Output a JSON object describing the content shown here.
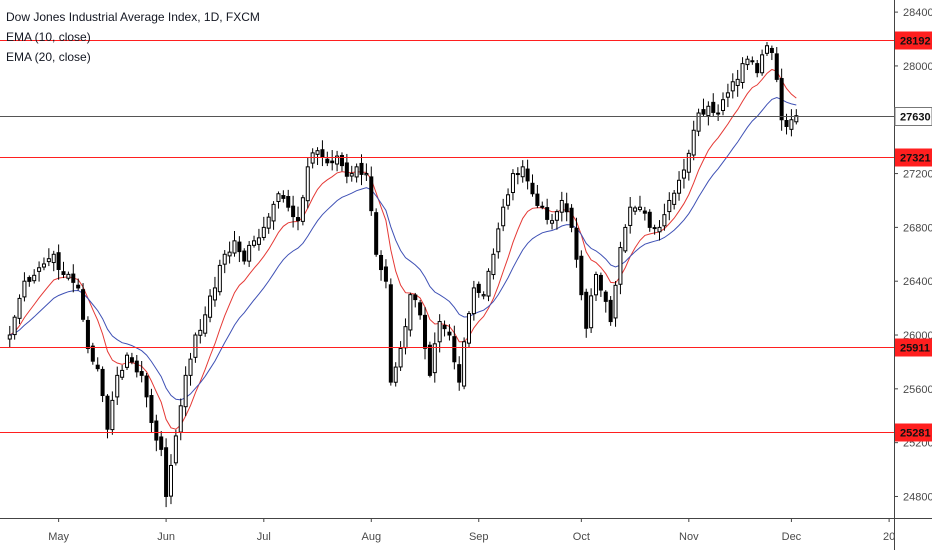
{
  "chart_data": {
    "type": "candlestick",
    "title": "Dow Jones Industrial Average Index, 1D, FXCM",
    "indicators": [
      {
        "name": "EMA (10, close)",
        "color": "#e53935"
      },
      {
        "name": "EMA (20, close)",
        "color": "#3f51b5"
      }
    ],
    "ylim": [
      24640,
      28490
    ],
    "y_ticks": [
      24800,
      25200,
      25600,
      26000,
      26400,
      26800,
      27200,
      27600,
      28000,
      28400
    ],
    "x_ticks": [
      "May",
      "Jun",
      "Jul",
      "Aug",
      "Sep",
      "Oct",
      "Nov",
      "Dec",
      "20"
    ],
    "x_tick_index": [
      10,
      32,
      52,
      74,
      96,
      117,
      139,
      160,
      180
    ],
    "x_range": [
      -2,
      181
    ],
    "grid": false,
    "last_price": 27630,
    "levels": [
      {
        "value": 28192,
        "label": "28192",
        "color": "#ff1f1f"
      },
      {
        "value": 27321,
        "label": "27321",
        "color": "#ff1f1f"
      },
      {
        "value": 25911,
        "label": "25911",
        "color": "#ff1f1f"
      },
      {
        "value": 25281,
        "label": "25281",
        "color": "#ff1f1f"
      }
    ],
    "anchors": [
      [
        0,
        26000
      ],
      [
        3,
        26400
      ],
      [
        6,
        26500
      ],
      [
        9,
        26600
      ],
      [
        11,
        26450
      ],
      [
        14,
        26350
      ],
      [
        16,
        25900
      ],
      [
        18,
        25750
      ],
      [
        20,
        25300
      ],
      [
        22,
        25700
      ],
      [
        24,
        25850
      ],
      [
        27,
        25700
      ],
      [
        29,
        25350
      ],
      [
        31,
        25150
      ],
      [
        32,
        24800
      ],
      [
        34,
        25250
      ],
      [
        36,
        25700
      ],
      [
        38,
        26000
      ],
      [
        40,
        26150
      ],
      [
        42,
        26350
      ],
      [
        44,
        26600
      ],
      [
        46,
        26700
      ],
      [
        48,
        26550
      ],
      [
        50,
        26700
      ],
      [
        52,
        26800
      ],
      [
        55,
        27050
      ],
      [
        57,
        26950
      ],
      [
        59,
        26850
      ],
      [
        61,
        27250
      ],
      [
        63,
        27370
      ],
      [
        65,
        27280
      ],
      [
        67,
        27330
      ],
      [
        69,
        27180
      ],
      [
        71,
        27250
      ],
      [
        73,
        27200
      ],
      [
        75,
        26600
      ],
      [
        77,
        26400
      ],
      [
        78,
        25650
      ],
      [
        80,
        25900
      ],
      [
        82,
        26300
      ],
      [
        84,
        26150
      ],
      [
        86,
        25700
      ],
      [
        88,
        26100
      ],
      [
        90,
        26000
      ],
      [
        92,
        25650
      ],
      [
        93,
        25950
      ],
      [
        95,
        26350
      ],
      [
        97,
        26300
      ],
      [
        99,
        26600
      ],
      [
        101,
        26950
      ],
      [
        103,
        27200
      ],
      [
        105,
        27250
      ],
      [
        107,
        27050
      ],
      [
        109,
        26950
      ],
      [
        111,
        26850
      ],
      [
        113,
        27000
      ],
      [
        115,
        26800
      ],
      [
        117,
        26300
      ],
      [
        118,
        26050
      ],
      [
        120,
        26450
      ],
      [
        122,
        26250
      ],
      [
        123,
        26100
      ],
      [
        125,
        26650
      ],
      [
        127,
        26950
      ],
      [
        129,
        26950
      ],
      [
        131,
        26800
      ],
      [
        133,
        26800
      ],
      [
        135,
        27000
      ],
      [
        137,
        27150
      ],
      [
        139,
        27350
      ],
      [
        141,
        27650
      ],
      [
        143,
        27700
      ],
      [
        145,
        27650
      ],
      [
        147,
        27800
      ],
      [
        149,
        27900
      ],
      [
        151,
        28050
      ],
      [
        153,
        27950
      ],
      [
        155,
        28150
      ],
      [
        156,
        28100
      ],
      [
        157,
        27900
      ],
      [
        158,
        27600
      ],
      [
        159,
        27550
      ],
      [
        160,
        27600
      ],
      [
        161,
        27630
      ]
    ]
  }
}
